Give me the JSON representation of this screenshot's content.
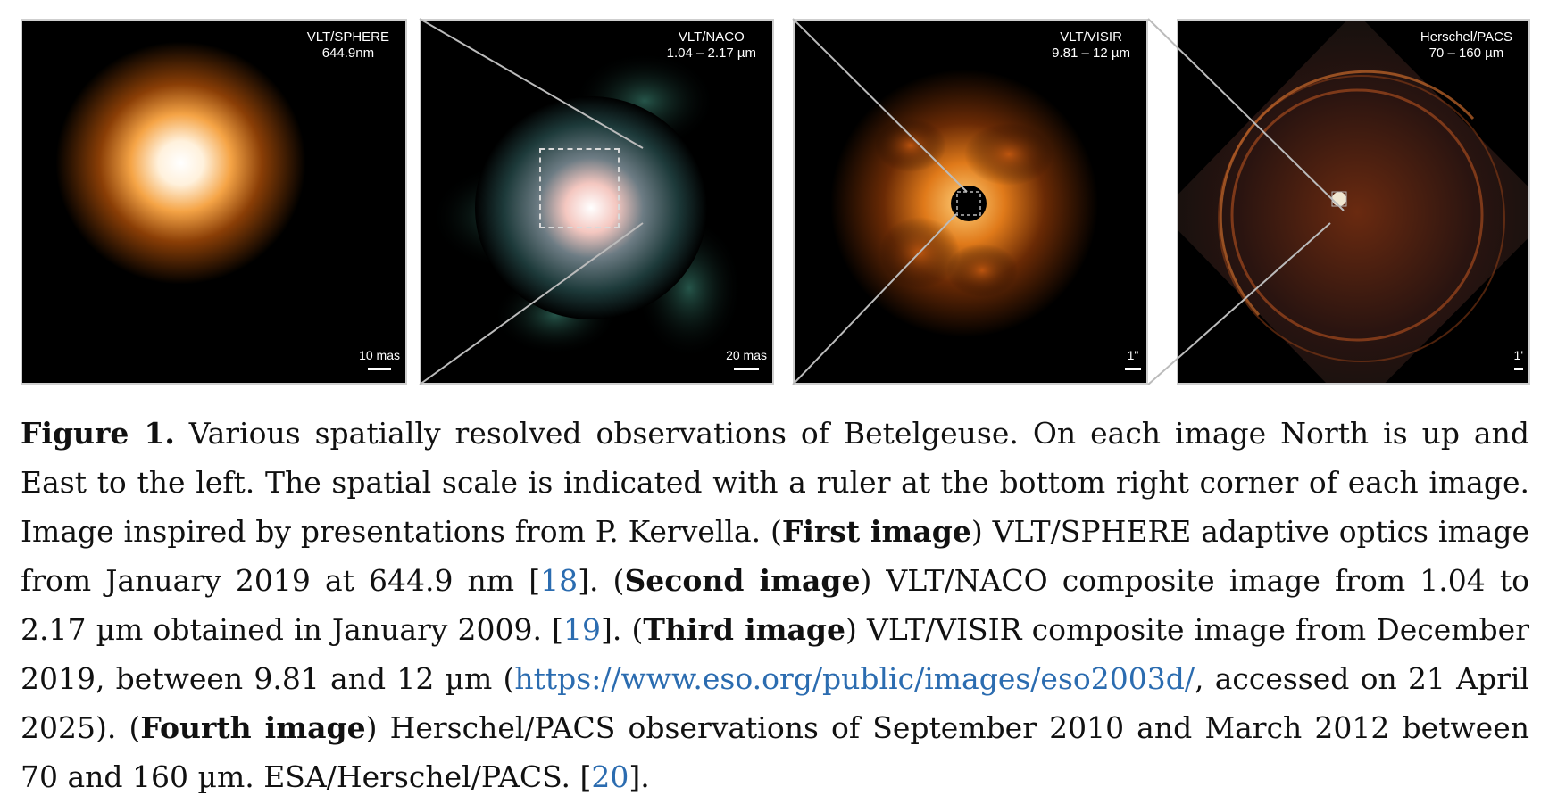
{
  "panels": [
    {
      "instrument": "VLT/SPHERE",
      "band": "644.9nm",
      "scale": "10 mas"
    },
    {
      "instrument": "VLT/NACO",
      "band": "1.04 – 2.17 µm",
      "scale": "20 mas"
    },
    {
      "instrument": "VLT/VISIR",
      "band": "9.81 – 12 µm",
      "scale": "1\""
    },
    {
      "instrument": "Herschel/PACS",
      "band": "70 – 160 µm",
      "scale": "1'"
    }
  ],
  "caption": {
    "label": "Figure 1.",
    "t1": " Various spatially resolved observations of Betelgeuse. On each image North is up and East to the left. The spatial scale is indicated with a ruler at the bottom right corner of each image. Image inspired by presentations from P. Kervella. (",
    "b1": "First image",
    "t2": ") VLT/SPHERE adaptive optics image from January 2019 at 644.9 nm [",
    "r18": "18",
    "t3": "]. (",
    "b2": "Second image",
    "t4": ") VLT/NACO composite image from 1.04 to 2.17 µm obtained in January 2009. [",
    "r19": "19",
    "t5": "]. (",
    "b3": "Third image",
    "t6": ") VLT/VISIR composite image from December 2019, between 9.81 and 12 µm (",
    "url": "https://www.eso.org/public/images/eso2003d/",
    "t7": ", accessed on 21 April 2025). (",
    "b4": "Fourth image",
    "t8": ") Herschel/PACS observations of September 2010 and March 2012 between 70 and 160 µm. ESA/Herschel/PACS. [",
    "r20": "20",
    "t9": "]."
  }
}
